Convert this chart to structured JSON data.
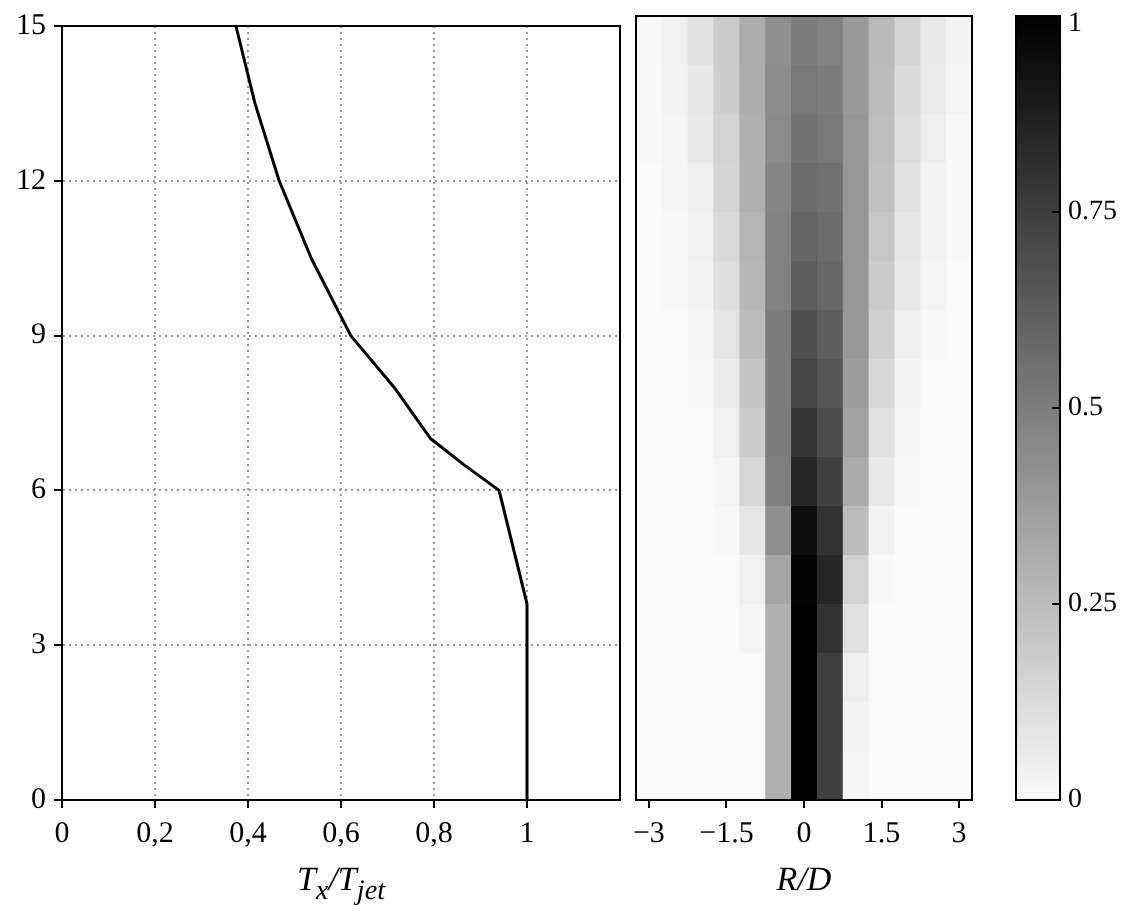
{
  "chart_data": [
    {
      "type": "line",
      "xlabel": "T$_{x}$/T$_{jet}$",
      "x": [
        1,
        1,
        0.94,
        0.864,
        0.793,
        0.714,
        0.621,
        0.536,
        0.467,
        0.415,
        0.374
      ],
      "values": [
        0,
        3.8,
        6,
        6.5,
        7,
        8,
        9,
        10.5,
        12,
        13.5,
        15
      ],
      "color": "#000000",
      "marker": "none",
      "grid": true,
      "xlim": [
        0,
        1.2
      ],
      "xticks": [
        0,
        {
          "value": 0.2,
          "label": "0,2"
        },
        {
          "value": 0.4,
          "label": "0,4"
        },
        {
          "value": 0.6,
          "label": "0,6"
        },
        {
          "value": 0.8,
          "label": "0,8"
        },
        1
      ],
      "ylim": [
        0,
        15
      ],
      "yticks": [
        0,
        3,
        6,
        9,
        12,
        15
      ]
    },
    {
      "type": "heatmap",
      "xlabel": "R/D",
      "categories": [
        "−3",
        null,
        null,
        "−1.5",
        null,
        null,
        "0",
        null,
        null,
        "1.5",
        null,
        null,
        "3"
      ],
      "y_categories": [
        null,
        null,
        null,
        null,
        null,
        null,
        null,
        null,
        null,
        null,
        null,
        null,
        null,
        null,
        null,
        null
      ],
      "cells": [
        [
          0.01,
          0.04,
          0.1,
          0.19,
          0.31,
          0.43,
          0.5,
          0.48,
          0.39,
          0.26,
          0.15,
          0.07,
          0.03
        ],
        [
          0.01,
          0.03,
          0.08,
          0.18,
          0.31,
          0.44,
          0.52,
          0.5,
          0.39,
          0.25,
          0.13,
          0.06,
          0.02
        ],
        [
          0.01,
          0.02,
          0.07,
          0.16,
          0.3,
          0.45,
          0.54,
          0.52,
          0.4,
          0.24,
          0.12,
          0.05,
          0.01
        ],
        [
          0,
          0.02,
          0.05,
          0.15,
          0.3,
          0.47,
          0.57,
          0.55,
          0.4,
          0.23,
          0.1,
          0.03,
          0.01
        ],
        [
          0,
          0.01,
          0.04,
          0.13,
          0.28,
          0.48,
          0.6,
          0.57,
          0.4,
          0.21,
          0.08,
          0.03,
          0.01
        ],
        [
          0,
          0.01,
          0.03,
          0.11,
          0.27,
          0.48,
          0.63,
          0.59,
          0.4,
          0.19,
          0.07,
          0.02,
          0
        ],
        [
          0,
          0,
          0.02,
          0.09,
          0.25,
          0.5,
          0.68,
          0.63,
          0.4,
          0.17,
          0.05,
          0.01,
          0
        ],
        [
          0,
          0,
          0.01,
          0.06,
          0.22,
          0.5,
          0.72,
          0.66,
          0.38,
          0.14,
          0.03,
          0,
          0
        ],
        [
          0,
          0,
          0,
          0.04,
          0.18,
          0.5,
          0.78,
          0.7,
          0.36,
          0.1,
          0.02,
          0,
          0
        ],
        [
          0,
          0,
          0,
          0.02,
          0.14,
          0.49,
          0.85,
          0.74,
          0.32,
          0.07,
          0.01,
          0,
          0
        ],
        [
          0,
          0,
          0,
          0.01,
          0.08,
          0.43,
          0.95,
          0.8,
          0.25,
          0.03,
          0,
          0,
          0
        ],
        [
          0,
          0,
          0,
          0,
          0.04,
          0.34,
          0.98,
          0.85,
          0.16,
          0.01,
          0,
          0,
          0
        ],
        [
          0,
          0,
          0,
          0,
          0.02,
          0.3,
          1,
          0.8,
          0.1,
          0,
          0,
          0,
          0
        ],
        [
          0,
          0,
          0,
          0,
          0,
          0.3,
          1,
          0.75,
          0.05,
          0,
          0,
          0,
          0
        ],
        [
          0,
          0,
          0,
          0,
          0,
          0.3,
          1,
          0.75,
          0.03,
          0,
          0,
          0,
          0
        ],
        [
          0,
          0,
          0,
          0,
          0,
          0.3,
          1,
          0.75,
          0.02,
          0,
          0,
          0,
          0
        ]
      ],
      "tick_labels": "x",
      "grid": false,
      "clim": [
        0,
        1
      ],
      "cticks": [
        0,
        0.25,
        0.5,
        0.75,
        1
      ]
    }
  ]
}
